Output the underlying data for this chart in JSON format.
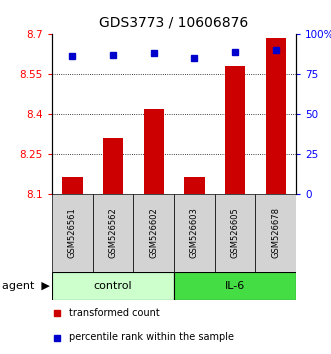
{
  "title": "GDS3773 / 10606876",
  "samples": [
    "GSM526561",
    "GSM526562",
    "GSM526602",
    "GSM526603",
    "GSM526605",
    "GSM526678"
  ],
  "bar_values": [
    8.165,
    8.31,
    8.42,
    8.165,
    8.58,
    8.685
  ],
  "dot_values": [
    86,
    87,
    88,
    85,
    89,
    90
  ],
  "bar_color": "#cc0000",
  "dot_color": "#0000cc",
  "ylim_left": [
    8.1,
    8.7
  ],
  "ylim_right": [
    0,
    100
  ],
  "yticks_left": [
    8.1,
    8.25,
    8.4,
    8.55,
    8.7
  ],
  "yticks_right": [
    0,
    25,
    50,
    75,
    100
  ],
  "ytick_labels_right": [
    "0",
    "25",
    "50",
    "75",
    "100%"
  ],
  "grid_values": [
    8.25,
    8.4,
    8.55
  ],
  "control_color": "#ccffcc",
  "il6_color": "#44dd44",
  "agent_label": "agent",
  "control_label": "control",
  "il6_label": "IL-6",
  "legend_bar_label": "transformed count",
  "legend_dot_label": "percentile rank within the sample",
  "title_fontsize": 10,
  "bg_color": "#ffffff"
}
